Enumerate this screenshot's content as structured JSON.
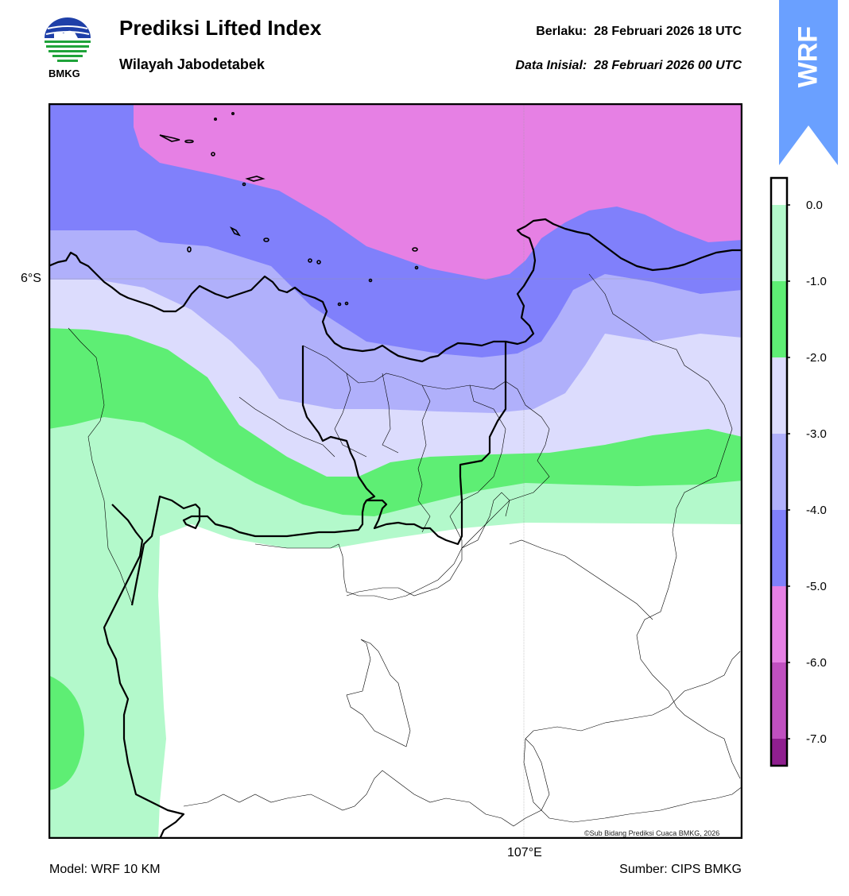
{
  "header": {
    "title": "Prediksi Lifted Index",
    "subtitle": "Wilayah Jabodetabek",
    "valid_label": "Berlaku:",
    "valid_time": "28 Februari 2026 18 UTC",
    "init_label": "Data Inisial:",
    "init_time": "28 Februari 2026 00 UTC"
  },
  "logo": {
    "text": "BMKG",
    "icon": "bmkg-logo-icon"
  },
  "badge": {
    "text": "WRF",
    "color": "#6aa0ff"
  },
  "map": {
    "lat_tick": "6°S",
    "lon_tick": "107°E",
    "credit": "©Sub Bidang Prediksi Cuaca BMKG, 2026"
  },
  "colorbar": {
    "ticks": [
      "0.0",
      "-1.0",
      "-2.0",
      "-3.0",
      "-4.0",
      "-5.0",
      "-6.0",
      "-7.0"
    ],
    "colors": {
      "0_to_-1": "#b3f9cb",
      "-1_to_-2": "#5eee74",
      "-2_to_-3": "#dcdcfd",
      "-3_to_-4": "#b0b0fb",
      "-4_to_-5": "#8080fb",
      "-5_to_-6": "#e680e4",
      "-6_to_-7": "#c050c0",
      "below_-7": "#8f1f8f"
    }
  },
  "footer": {
    "model": "Model: WRF 10 KM",
    "source": "Sumber: CIPS BMKG"
  }
}
